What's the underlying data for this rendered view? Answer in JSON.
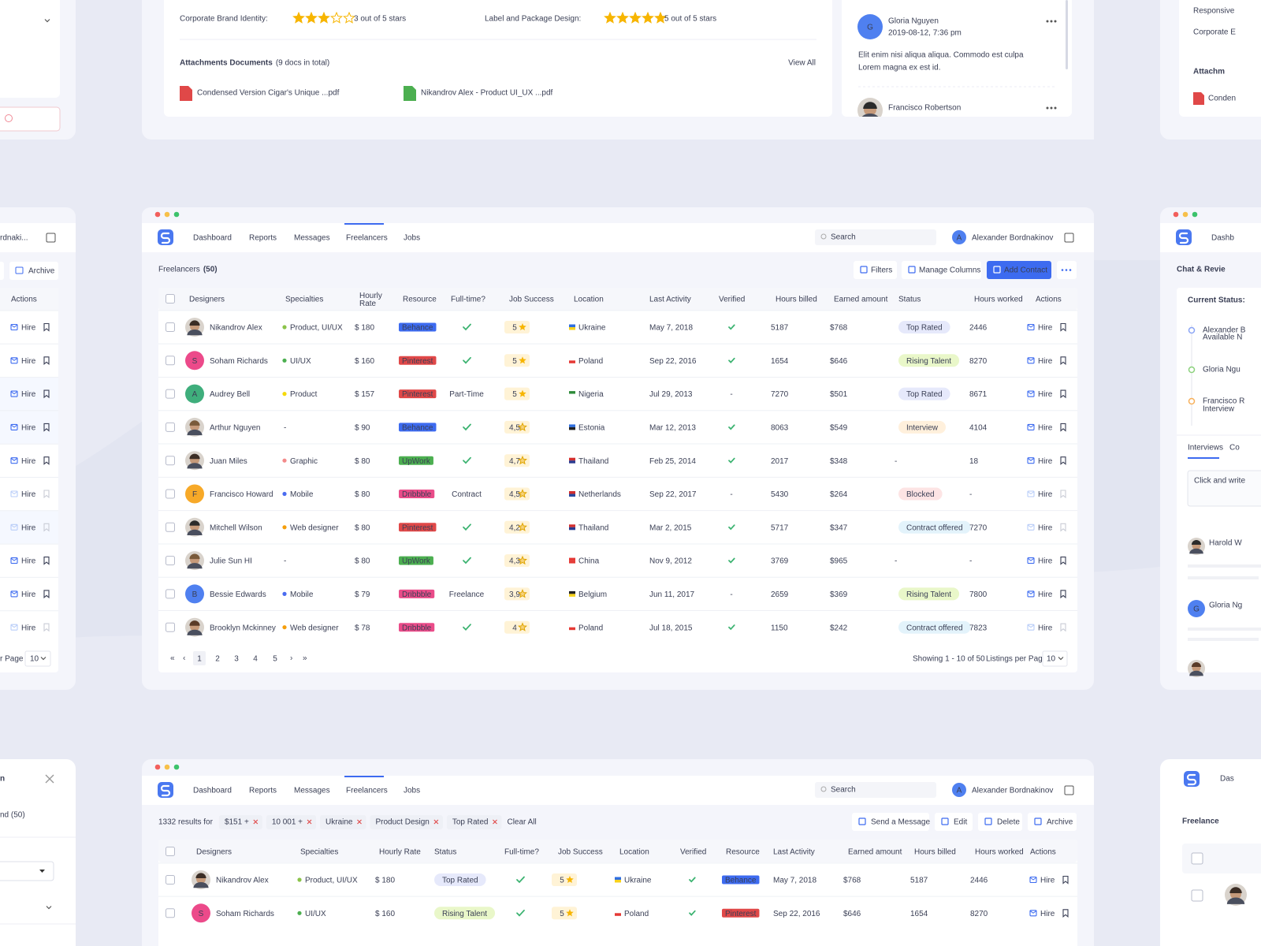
{
  "top_card": {
    "rating1_label": "Corporate Brand Identity:",
    "rating1_stars": 3,
    "rating1_text": "3 out of 5 stars",
    "rating2_label": "Label and Package Design:",
    "rating2_stars": 5,
    "rating2_text": "5 out of 5 stars",
    "attachments_title": "Attachments Documents",
    "attachments_count": "(9 docs in total)",
    "view_all": "View All",
    "files": [
      "Condensed Version Cigar's Unique ...pdf",
      "Nikandrov Alex - Product UI_UX ...pdf"
    ],
    "comment": {
      "initial": "G",
      "name": "Gloria Nguyen",
      "date": "2019-08-12, 7:36 pm",
      "lines": [
        "Elit enim nisi aliqua aliqua. Commodo est culpa",
        "Lorem magna ex est id."
      ]
    },
    "comment2_name": "Francisco Robertson"
  },
  "nav": {
    "items": [
      "Dashboard",
      "Reports",
      "Messages",
      "Freelancers",
      "Jobs"
    ],
    "active": 3,
    "search": "Search",
    "user_initial": "A",
    "user": "Alexander Bordnakinov"
  },
  "main": {
    "title": "Freelancers",
    "count": "(50)",
    "buttons": [
      "Filters",
      "Manage Columns",
      "Add Contact"
    ],
    "headers": [
      "Designers",
      "Specialties",
      "Hourly Rate",
      "Resource",
      "Full-time?",
      "Job Success",
      "Location",
      "Last Activity",
      "Verified",
      "Hours billed",
      "Earned amount",
      "Status",
      "Hours worked",
      "Actions"
    ],
    "hire_label": "Hire",
    "rows": [
      {
        "name": "Nikandrov Alex",
        "avatar": null,
        "specialty": "Product, UI/UX",
        "specialty_color": "#8bc34a",
        "rate": "$ 180",
        "resource": "Behance",
        "fulltime": true,
        "success": "5",
        "location": "Ukraine",
        "flag": [
          "#2f6fe0",
          "#f7d21c"
        ],
        "last": "May 7, 2018",
        "verified": true,
        "billed": "5187",
        "earned": "$768",
        "status": "Top Rated",
        "worked": "2446",
        "hire_active": true
      },
      {
        "name": "Soham Richards",
        "avatar": "S",
        "avatar_color": "#ec4a8a",
        "specialty": "UI/UX",
        "specialty_color": "#4caf50",
        "rate": "$ 160",
        "resource": "Pinterest",
        "fulltime": true,
        "success": "5",
        "location": "Poland",
        "flag": [
          "#ffffff",
          "#e53935"
        ],
        "last": "Sep 22, 2016",
        "verified": true,
        "billed": "1654",
        "earned": "$646",
        "status": "Rising Talent",
        "worked": "8270",
        "hire_active": true
      },
      {
        "name": "Audrey Bell",
        "avatar": "A",
        "avatar_color": "#3fae7c",
        "specialty": "Product",
        "specialty_color": "#f5d90a",
        "rate": "$ 157",
        "resource": "Pinterest",
        "fulltime": "Part-Time",
        "success": "5",
        "location": "Nigeria",
        "flag": [
          "#2e8b3a",
          "#ffffff"
        ],
        "last": "Jul 29, 2013",
        "verified": "-",
        "billed": "7270",
        "earned": "$501",
        "status": "Top Rated",
        "worked": "8671",
        "hire_active": true
      },
      {
        "name": "Arthur Nguyen",
        "avatar": null,
        "specialty": "-",
        "specialty_color": null,
        "rate": "$ 90",
        "resource": "Behance",
        "fulltime": true,
        "success": "4,5",
        "location": "Estonia",
        "flag": [
          "#2f6fe0",
          "#222222"
        ],
        "last": "Mar 12, 2013",
        "verified": true,
        "billed": "8063",
        "earned": "$549",
        "status": "Interview",
        "worked": "4104",
        "hire_active": true
      },
      {
        "name": "Juan Miles",
        "avatar": null,
        "specialty": "Graphic",
        "specialty_color": "#f38a8a",
        "rate": "$ 80",
        "resource": "UpWork",
        "fulltime": true,
        "success": "4,7",
        "location": "Thailand",
        "flag": [
          "#d32f2f",
          "#2a3a8f"
        ],
        "last": "Feb 25, 2014",
        "verified": true,
        "billed": "2017",
        "earned": "$348",
        "status": "-",
        "worked": "18",
        "hire_active": true
      },
      {
        "name": "Francisco Howard",
        "avatar": "F",
        "avatar_color": "#f7a928",
        "specialty": "Mobile",
        "specialty_color": "#4a6cf0",
        "rate": "$ 80",
        "resource": "Dribbble",
        "fulltime": "Contract",
        "success": "4,5",
        "location": "Netherlands",
        "flag": [
          "#d32f2f",
          "#2a4aa0"
        ],
        "last": "Sep 22, 2017",
        "verified": "-",
        "billed": "5430",
        "earned": "$264",
        "status": "Blocked",
        "worked": "-",
        "hire_active": false
      },
      {
        "name": "Mitchell Wilson",
        "avatar": null,
        "specialty": "Web designer",
        "specialty_color": "#f59e0b",
        "rate": "$ 80",
        "resource": "Pinterest",
        "fulltime": true,
        "success": "4,2",
        "location": "Thailand",
        "flag": [
          "#d32f2f",
          "#2a3a8f"
        ],
        "last": "Mar 2, 2015",
        "verified": true,
        "billed": "5717",
        "earned": "$347",
        "status": "Contract offered",
        "worked": "7270",
        "hire_active": false
      },
      {
        "name": "Julie Sun HI",
        "avatar": null,
        "specialty": "-",
        "specialty_color": null,
        "rate": "$ 80",
        "resource": "UpWork",
        "fulltime": true,
        "success": "4,3",
        "location": "China",
        "flag": [
          "#e53935",
          "#e53935"
        ],
        "last": "Nov 9, 2012",
        "verified": true,
        "billed": "3769",
        "earned": "$965",
        "status": "-",
        "worked": "-",
        "hire_active": true
      },
      {
        "name": "Bessie Edwards",
        "avatar": "B",
        "avatar_color": "#4f80f0",
        "specialty": "Mobile",
        "specialty_color": "#4a6cf0",
        "rate": "$ 79",
        "resource": "Dribbble",
        "fulltime": "Freelance",
        "success": "3,9",
        "location": "Belgium",
        "flag": [
          "#222222",
          "#f7d21c"
        ],
        "last": "Jun 11, 2017",
        "verified": "-",
        "billed": "2659",
        "earned": "$369",
        "status": "Rising Talent",
        "worked": "7800",
        "hire_active": true
      },
      {
        "name": "Brooklyn Mckinney",
        "avatar": null,
        "specialty": "Web designer",
        "specialty_color": "#f59e0b",
        "rate": "$ 78",
        "resource": "Dribbble",
        "fulltime": true,
        "success": "4",
        "location": "Poland",
        "flag": [
          "#ffffff",
          "#e53935"
        ],
        "last": "Jul 18, 2015",
        "verified": true,
        "billed": "1150",
        "earned": "$242",
        "status": "Contract offered",
        "worked": "7823",
        "hire_active": false
      }
    ],
    "pagination": {
      "first": "«",
      "prev": "‹",
      "pages": [
        "1",
        "2",
        "3",
        "4",
        "5"
      ],
      "current": 0,
      "next": "›",
      "last": "»",
      "showing": "Showing 1 - 10 of 50",
      "per_page_label": "Listings per Page",
      "per_page": "10"
    }
  },
  "resource_colors": {
    "Behance": "#3d6bf0",
    "Pinterest": "#e04848",
    "UpWork": "#4caf50",
    "Dribbble": "#ea4c89"
  },
  "status_colors": {
    "Top Rated": [
      "#e6e9fb",
      "#5a6acf"
    ],
    "Rising Talent": [
      "#e9f7c9",
      "#5d8a1a"
    ],
    "Interview": [
      "#fff0dc",
      "#e08a1e"
    ],
    "Blocked": [
      "#fde4e4",
      "#e04848"
    ],
    "Contract offered": [
      "#e3f3fb",
      "#2aa0d0"
    ]
  },
  "bottom": {
    "results": "1332 results for",
    "chips": [
      "$151 +",
      "10 001 +",
      "Ukraine",
      "Product Design",
      "Top Rated"
    ],
    "clear": "Clear All",
    "buttons": [
      "Send a Message",
      "Edit",
      "Delete",
      "Archive"
    ],
    "headers": [
      "Designers",
      "Specialties",
      "Hourly Rate",
      "Status",
      "Full-time?",
      "Job Success",
      "Location",
      "Verified",
      "Resource",
      "Last Activity",
      "Earned amount",
      "Hours billed",
      "Hours worked",
      "Actions"
    ],
    "rows": [
      {
        "name": "Nikandrov Alex",
        "avatar": null,
        "specialty": "Product, UI/UX",
        "specialty_color": "#8bc34a",
        "rate": "$ 180",
        "resource": "Behance",
        "fulltime": true,
        "success": "5",
        "location": "Ukraine",
        "flag": [
          "#2f6fe0",
          "#f7d21c"
        ],
        "last": "May 7, 2018",
        "verified": true,
        "billed": "5187",
        "earned": "$768",
        "status": "Top Rated",
        "worked": "2446",
        "hire_active": true
      },
      {
        "name": "Soham Richards",
        "avatar": "S",
        "avatar_color": "#ec4a8a",
        "specialty": "UI/UX",
        "specialty_color": "#4caf50",
        "rate": "$ 160",
        "resource": "Pinterest",
        "fulltime": true,
        "success": "5",
        "location": "Poland",
        "flag": [
          "#ffffff",
          "#e53935"
        ],
        "last": "Sep 22, 2016",
        "verified": true,
        "billed": "1654",
        "earned": "$646",
        "status": "Rising Talent",
        "worked": "8270",
        "hire_active": true
      }
    ]
  },
  "left_panel": {
    "user": "rdnaki...",
    "archive": "Archive",
    "actions": "Actions",
    "hire_active": [
      true,
      true,
      true,
      true,
      true,
      false,
      false,
      true,
      true,
      false
    ],
    "per_page_label": "r Page",
    "per_page": "10",
    "bottom_title": "n",
    "bottom_found": "nd (50)"
  },
  "right_panel": {
    "nav": "Dashb",
    "title": "Chat & Revie",
    "current_status": "Current Status:",
    "timeline": [
      "Alexander B",
      "Gloria Ngu",
      "Francisco R"
    ],
    "timeline_sub": [
      "Available N",
      "Interview"
    ],
    "tabs": [
      "Interviews",
      "Co"
    ],
    "placeholder": "Click and write",
    "reviewers": [
      "Harold W",
      "Gloria Ng"
    ],
    "bottom_nav": "Das",
    "bottom_title": "Freelance",
    "top_lines": [
      "Responsive",
      "Corporate E"
    ],
    "top_attach": "Attachm",
    "top_file": "Conden"
  }
}
